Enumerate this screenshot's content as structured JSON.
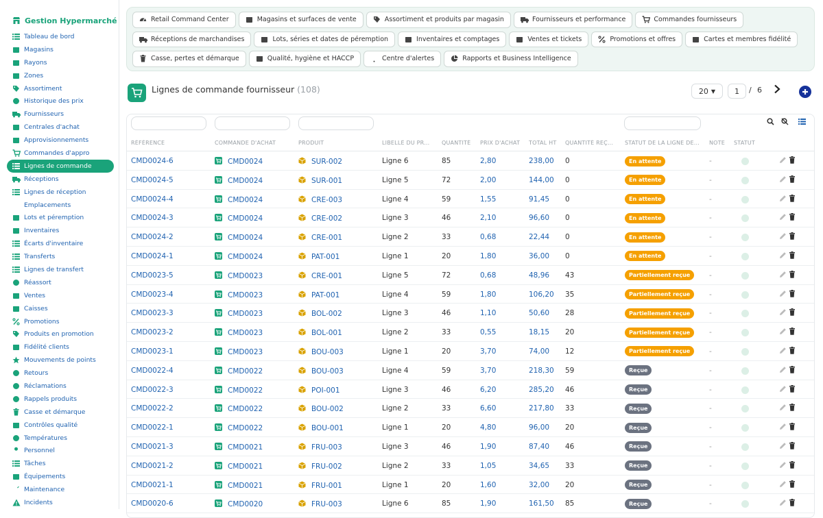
{
  "app": {
    "title": "Gestion Hypermarché"
  },
  "sidebar": {
    "items": [
      {
        "label": "Tableau de bord",
        "icon": "dashboard-icon"
      },
      {
        "label": "Magasins",
        "icon": "store-icon"
      },
      {
        "label": "Rayons",
        "icon": "boxes-icon"
      },
      {
        "label": "Zones",
        "icon": "map-icon"
      },
      {
        "label": "Assortiment",
        "icon": "tags-icon"
      },
      {
        "label": "Historique des prix",
        "icon": "history-icon"
      },
      {
        "label": "Fournisseurs",
        "icon": "truck-icon"
      },
      {
        "label": "Centrales d'achat",
        "icon": "building-icon"
      },
      {
        "label": "Approvisionnements",
        "icon": "dolly-icon"
      },
      {
        "label": "Commandes d'appro",
        "icon": "cart-icon"
      },
      {
        "label": "Lignes de commande",
        "icon": "list-icon"
      },
      {
        "label": "Réceptions",
        "icon": "truck-loading-icon"
      },
      {
        "label": "Lignes de réception",
        "icon": "list-icon"
      },
      {
        "label": "Emplacements",
        "icon": "map-pin-icon"
      },
      {
        "label": "Lots et péremption",
        "icon": "cubes-icon"
      },
      {
        "label": "Inventaires",
        "icon": "clipboard-icon"
      },
      {
        "label": "Écarts d'inventaire",
        "icon": "list-icon"
      },
      {
        "label": "Transferts",
        "icon": "exchange-icon"
      },
      {
        "label": "Lignes de transfert",
        "icon": "list-icon"
      },
      {
        "label": "Réassort",
        "icon": "sync-icon"
      },
      {
        "label": "Ventes",
        "icon": "receipt-icon"
      },
      {
        "label": "Caisses",
        "icon": "cash-register-icon"
      },
      {
        "label": "Promotions",
        "icon": "percent-icon"
      },
      {
        "label": "Produits en promotion",
        "icon": "tag-icon"
      },
      {
        "label": "Fidélité clients",
        "icon": "id-card-icon"
      },
      {
        "label": "Mouvements de points",
        "icon": "star-icon"
      },
      {
        "label": "Retours",
        "icon": "undo-icon"
      },
      {
        "label": "Réclamations",
        "icon": "bullhorn-icon"
      },
      {
        "label": "Rappels produits",
        "icon": "recall-icon"
      },
      {
        "label": "Casse et démarque",
        "icon": "trash-icon"
      },
      {
        "label": "Contrôles qualité",
        "icon": "clipboard-check-icon"
      },
      {
        "label": "Températures",
        "icon": "thermometer-icon"
      },
      {
        "label": "Personnel",
        "icon": "user-icon"
      },
      {
        "label": "Tâches",
        "icon": "tasks-icon"
      },
      {
        "label": "Équipements",
        "icon": "equipment-icon"
      },
      {
        "label": "Maintenance",
        "icon": "wrench-icon"
      },
      {
        "label": "Incidents",
        "icon": "warning-icon"
      }
    ]
  },
  "topnav": {
    "items": [
      {
        "label": "Retail Command Center",
        "icon": "gauge-icon"
      },
      {
        "label": "Magasins et surfaces de vente",
        "icon": "store-icon"
      },
      {
        "label": "Assortiment et produits par magasin",
        "icon": "tags-icon"
      },
      {
        "label": "Fournisseurs et performance",
        "icon": "truck-icon"
      },
      {
        "label": "Commandes fournisseurs",
        "icon": "cart-icon"
      },
      {
        "label": "Réceptions de marchandises",
        "icon": "truck-loading-icon"
      },
      {
        "label": "Lots, séries et dates de péremption",
        "icon": "cubes-icon"
      },
      {
        "label": "Inventaires et comptages",
        "icon": "clipboard-icon"
      },
      {
        "label": "Ventes et tickets",
        "icon": "receipt-icon"
      },
      {
        "label": "Promotions et offres",
        "icon": "percent-icon"
      },
      {
        "label": "Cartes et membres fidélité",
        "icon": "id-card-icon"
      },
      {
        "label": "Casse, pertes et démarque",
        "icon": "trash-icon"
      },
      {
        "label": "Qualité, hygiène et HACCP",
        "icon": "clipboard-check-icon"
      },
      {
        "label": "Centre d'alertes",
        "icon": "bell-icon"
      },
      {
        "label": "Rapports et Business Intelligence",
        "icon": "chart-pie-icon"
      }
    ]
  },
  "page": {
    "title": "Lignes de commande fournisseur",
    "count": "(108)",
    "page_size": "20",
    "current_page": "1",
    "page_sep": "/",
    "total_pages": "6"
  },
  "table": {
    "columns": [
      "RÉFÉRENCE",
      "COMMANDE D'ACHAT",
      "PRODUIT",
      "LIBELLÉ DU PR...",
      "QUANTITÉ",
      "PRIX D'ACHAT",
      "TOTAL HT",
      "QUANTITÉ REÇ...",
      "STATUT DE LA LIGNE DE...",
      "NOTE",
      "STATUT"
    ],
    "rows": [
      {
        "ref": "CMD0024-6",
        "order": "CMD0024",
        "product": "SUR-002",
        "label": "Ligne 6",
        "qty": "85",
        "price": "2,80",
        "total": "238,00",
        "received": "0",
        "status": "En attente",
        "note": "-"
      },
      {
        "ref": "CMD0024-5",
        "order": "CMD0024",
        "product": "SUR-001",
        "label": "Ligne 5",
        "qty": "72",
        "price": "2,00",
        "total": "144,00",
        "received": "0",
        "status": "En attente",
        "note": "-"
      },
      {
        "ref": "CMD0024-4",
        "order": "CMD0024",
        "product": "CRE-003",
        "label": "Ligne 4",
        "qty": "59",
        "price": "1,55",
        "total": "91,45",
        "received": "0",
        "status": "En attente",
        "note": "-"
      },
      {
        "ref": "CMD0024-3",
        "order": "CMD0024",
        "product": "CRE-002",
        "label": "Ligne 3",
        "qty": "46",
        "price": "2,10",
        "total": "96,60",
        "received": "0",
        "status": "En attente",
        "note": "-"
      },
      {
        "ref": "CMD0024-2",
        "order": "CMD0024",
        "product": "CRE-001",
        "label": "Ligne 2",
        "qty": "33",
        "price": "0,68",
        "total": "22,44",
        "received": "0",
        "status": "En attente",
        "note": "-"
      },
      {
        "ref": "CMD0024-1",
        "order": "CMD0024",
        "product": "PAT-001",
        "label": "Ligne 1",
        "qty": "20",
        "price": "1,80",
        "total": "36,00",
        "received": "0",
        "status": "En attente",
        "note": "-"
      },
      {
        "ref": "CMD0023-5",
        "order": "CMD0023",
        "product": "CRE-001",
        "label": "Ligne 5",
        "qty": "72",
        "price": "0,68",
        "total": "48,96",
        "received": "43",
        "status": "Partiellement reçue",
        "note": "-"
      },
      {
        "ref": "CMD0023-4",
        "order": "CMD0023",
        "product": "PAT-001",
        "label": "Ligne 4",
        "qty": "59",
        "price": "1,80",
        "total": "106,20",
        "received": "35",
        "status": "Partiellement reçue",
        "note": "-"
      },
      {
        "ref": "CMD0023-3",
        "order": "CMD0023",
        "product": "BOL-002",
        "label": "Ligne 3",
        "qty": "46",
        "price": "1,10",
        "total": "50,60",
        "received": "28",
        "status": "Partiellement reçue",
        "note": "-"
      },
      {
        "ref": "CMD0023-2",
        "order": "CMD0023",
        "product": "BOL-001",
        "label": "Ligne 2",
        "qty": "33",
        "price": "0,55",
        "total": "18,15",
        "received": "20",
        "status": "Partiellement reçue",
        "note": "-"
      },
      {
        "ref": "CMD0023-1",
        "order": "CMD0023",
        "product": "BOU-003",
        "label": "Ligne 1",
        "qty": "20",
        "price": "3,70",
        "total": "74,00",
        "received": "12",
        "status": "Partiellement reçue",
        "note": "-"
      },
      {
        "ref": "CMD0022-4",
        "order": "CMD0022",
        "product": "BOU-003",
        "label": "Ligne 4",
        "qty": "59",
        "price": "3,70",
        "total": "218,30",
        "received": "59",
        "status": "Reçue",
        "note": "-"
      },
      {
        "ref": "CMD0022-3",
        "order": "CMD0022",
        "product": "POI-001",
        "label": "Ligne 3",
        "qty": "46",
        "price": "6,20",
        "total": "285,20",
        "received": "46",
        "status": "Reçue",
        "note": "-"
      },
      {
        "ref": "CMD0022-2",
        "order": "CMD0022",
        "product": "BOU-002",
        "label": "Ligne 2",
        "qty": "33",
        "price": "6,60",
        "total": "217,80",
        "received": "33",
        "status": "Reçue",
        "note": "-"
      },
      {
        "ref": "CMD0022-1",
        "order": "CMD0022",
        "product": "BOU-001",
        "label": "Ligne 1",
        "qty": "20",
        "price": "4,80",
        "total": "96,00",
        "received": "20",
        "status": "Reçue",
        "note": "-"
      },
      {
        "ref": "CMD0021-3",
        "order": "CMD0021",
        "product": "FRU-003",
        "label": "Ligne 3",
        "qty": "46",
        "price": "1,90",
        "total": "87,40",
        "received": "46",
        "status": "Reçue",
        "note": "-"
      },
      {
        "ref": "CMD0021-2",
        "order": "CMD0021",
        "product": "FRU-002",
        "label": "Ligne 2",
        "qty": "33",
        "price": "1,05",
        "total": "34,65",
        "received": "33",
        "status": "Reçue",
        "note": "-"
      },
      {
        "ref": "CMD0021-1",
        "order": "CMD0021",
        "product": "FRU-001",
        "label": "Ligne 1",
        "qty": "20",
        "price": "1,60",
        "total": "32,00",
        "received": "20",
        "status": "Reçue",
        "note": "-"
      },
      {
        "ref": "CMD0020-6",
        "order": "CMD0020",
        "product": "FRU-003",
        "label": "Ligne 6",
        "qty": "85",
        "price": "1,90",
        "total": "161,50",
        "received": "85",
        "status": "Reçue",
        "note": "-"
      }
    ]
  },
  "colors": {
    "accent": "#1aa37a",
    "link": "#1f62b0",
    "status_pending": "#f5a000",
    "status_partial": "#f5a000",
    "status_received": "#6b7280",
    "add_button": "#16329a"
  }
}
